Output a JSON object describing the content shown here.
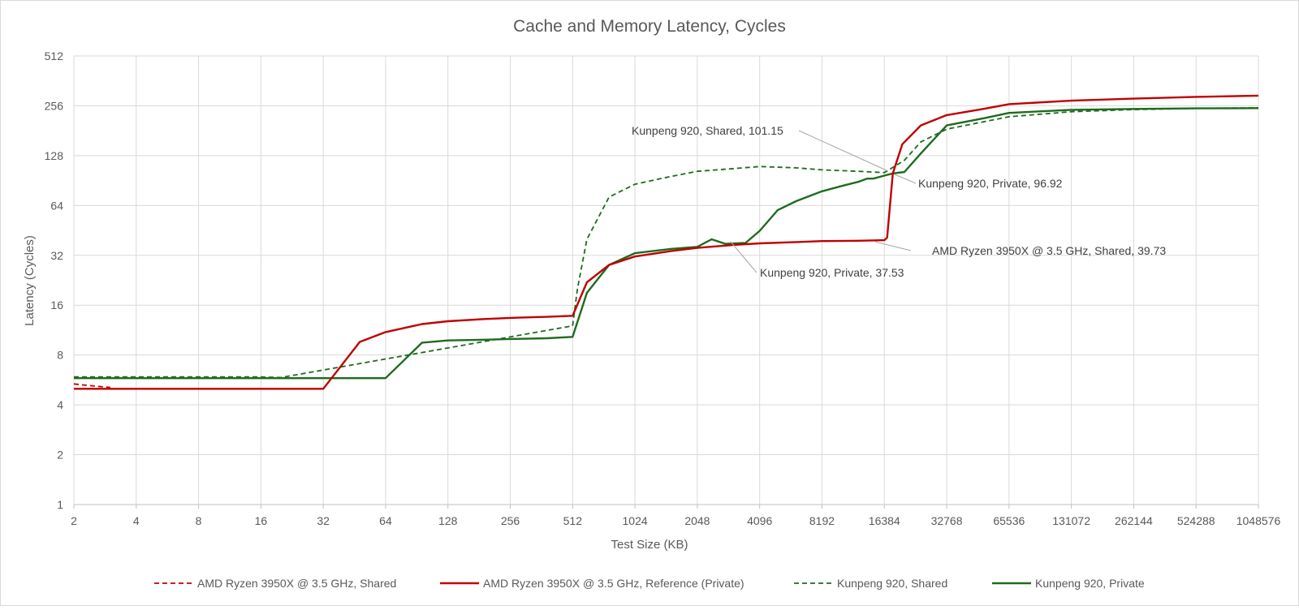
{
  "chart_data": {
    "type": "line",
    "title": "Cache and Memory Latency, Cycles",
    "xlabel": "Test Size (KB)",
    "ylabel": "Latency (Cycles)",
    "x_scale": "log2",
    "y_scale": "log2",
    "xlim": [
      2,
      1048576
    ],
    "ylim": [
      1,
      512
    ],
    "x_ticks": [
      "2",
      "4",
      "8",
      "16",
      "32",
      "64",
      "128",
      "256",
      "512",
      "1024",
      "2048",
      "4096",
      "8192",
      "16384",
      "32768",
      "65536",
      "131072",
      "262144",
      "524288",
      "1048576"
    ],
    "y_ticks": [
      "1",
      "2",
      "4",
      "8",
      "16",
      "32",
      "64",
      "128",
      "256",
      "512"
    ],
    "grid": true,
    "legend_position": "bottom",
    "series": [
      {
        "name": "AMD Ryzen 3950X @ 3.5 GHz, Shared",
        "color": "#c00000",
        "dash": true,
        "x": [
          2,
          2.5,
          3
        ],
        "y": [
          5.35,
          5.2,
          5.1
        ]
      },
      {
        "name": "AMD Ryzen 3950X @ 3.5 GHz, Reference (Private)",
        "color": "#c00000",
        "dash": false,
        "x": [
          2,
          4,
          8,
          16,
          32,
          48,
          64,
          96,
          128,
          192,
          256,
          384,
          512,
          600,
          768,
          1024,
          1536,
          2048,
          3072,
          4096,
          6144,
          8192,
          12288,
          16384,
          16900,
          18000,
          20000,
          24576,
          32768,
          49152,
          65536,
          131072,
          262144,
          524288,
          1048576
        ],
        "y": [
          5,
          5,
          5,
          5,
          5,
          9.6,
          11,
          12.3,
          12.8,
          13.2,
          13.4,
          13.6,
          13.8,
          22,
          28,
          31.5,
          34,
          35.5,
          37,
          37.8,
          38.5,
          39,
          39.2,
          39.5,
          41,
          100,
          150,
          195,
          225,
          245,
          262,
          275,
          283,
          290,
          295
        ]
      },
      {
        "name": "Kunpeng 920, Shared",
        "color": "#1e6b1e",
        "dash": true,
        "x": [
          2,
          4,
          8,
          16,
          20,
          512,
          540,
          600,
          768,
          1024,
          1536,
          2048,
          3072,
          4096,
          6144,
          8192,
          12288,
          16384,
          20480,
          24576,
          32768,
          65536,
          131072,
          262144,
          524288,
          1048576
        ],
        "y": [
          5.9,
          5.9,
          5.9,
          5.9,
          5.85,
          12,
          20,
          40,
          72,
          86,
          96,
          103,
          107,
          110,
          108,
          105,
          103,
          101.15,
          120,
          155,
          185,
          220,
          236,
          243,
          247,
          249
        ]
      },
      {
        "name": "Kunpeng 920, Private",
        "color": "#1e6b1e",
        "dash": false,
        "x": [
          2,
          4,
          8,
          16,
          32,
          64,
          96,
          128,
          192,
          256,
          384,
          512,
          600,
          768,
          1024,
          1536,
          2048,
          2400,
          2800,
          3500,
          4096,
          5000,
          6144,
          8192,
          10240,
          12288,
          13500,
          14500,
          16384,
          18000,
          20480,
          24576,
          32768,
          49152,
          65536,
          131072,
          262144,
          524288,
          1048576
        ],
        "y": [
          5.8,
          5.8,
          5.8,
          5.8,
          5.8,
          5.8,
          9.5,
          9.8,
          9.9,
          10,
          10.1,
          10.3,
          19,
          28,
          33,
          35,
          36,
          40,
          37.53,
          38,
          45,
          60,
          68,
          78,
          84,
          89,
          93,
          93,
          96.92,
          100,
          102,
          132,
          195,
          215,
          232,
          242,
          245,
          247,
          248
        ]
      }
    ],
    "annotations": [
      {
        "label": "Kunpeng 920, Shared, 101.15",
        "x": 16384,
        "y": 101.15
      },
      {
        "label": "Kunpeng 920, Private, 96.92",
        "x": 16384,
        "y": 96.92
      },
      {
        "label": "AMD Ryzen 3950X @ 3.5 GHz, Shared, 39.73",
        "x": 16384,
        "y": 39.73
      },
      {
        "label": "Kunpeng 920, Private, 37.53",
        "x": 2800,
        "y": 37.53
      }
    ]
  }
}
